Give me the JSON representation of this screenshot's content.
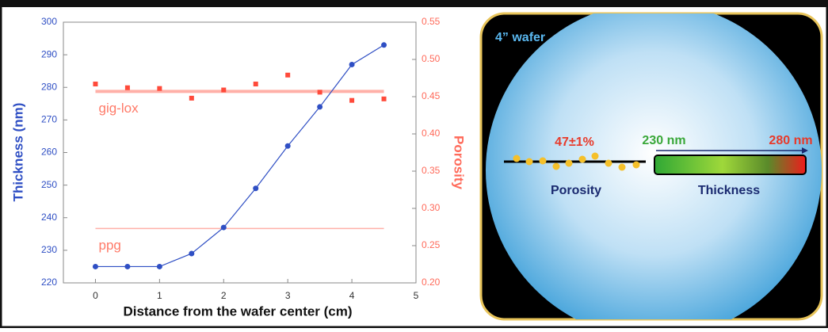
{
  "chart_data": {
    "type": "line",
    "x_label": "Distance from the wafer center (cm)",
    "y_label": "Thickness (nm)",
    "y2_label": "Porosity",
    "x": [
      0,
      0.5,
      1,
      1.5,
      2,
      2.5,
      3,
      3.5,
      4,
      4.5
    ],
    "series": [
      {
        "name": "Thickness",
        "color": "#2f4fc4",
        "marker": "circle",
        "line": true,
        "values": [
          225,
          225,
          225,
          229,
          237,
          249,
          262,
          274,
          287,
          293
        ]
      },
      {
        "name": "Porosity",
        "color": "#ff4a3a",
        "marker": "square",
        "line": false,
        "axis": "y2",
        "values": [
          0.467,
          0.462,
          0.461,
          0.448,
          0.459,
          0.467,
          0.479,
          0.456,
          0.445,
          0.447
        ]
      }
    ],
    "reference_lines": [
      {
        "label": "gig-lox",
        "value": 0.457,
        "color": "#ffb0a8",
        "width": 4
      },
      {
        "label": "ppg",
        "value": 0.273,
        "color": "#ffb0a8",
        "width": 1.5
      }
    ],
    "xlim": [
      -0.5,
      5
    ],
    "xticks": [
      0,
      1,
      2,
      3,
      4,
      5
    ],
    "ylim": [
      220,
      300
    ],
    "yticks": [
      220,
      230,
      240,
      250,
      260,
      270,
      280,
      290,
      300
    ],
    "y2lim": [
      0.2,
      0.55
    ],
    "y2ticks": [
      {
        "value": 0.2,
        "label": "0.20"
      },
      0.25,
      {
        "value": 0.3,
        "label": "0.30"
      },
      0.35,
      {
        "value": 0.4,
        "label": "0.40"
      },
      0.45,
      {
        "value": 0.5,
        "label": "0.50"
      },
      0.55
    ]
  },
  "diagram": {
    "wafer": "4” wafer",
    "porosity_value": "47±1%",
    "thickness_min": "230 nm",
    "thickness_max": "280 nm",
    "porosity_label": "Porosity",
    "thickness_label": "Thickness"
  }
}
